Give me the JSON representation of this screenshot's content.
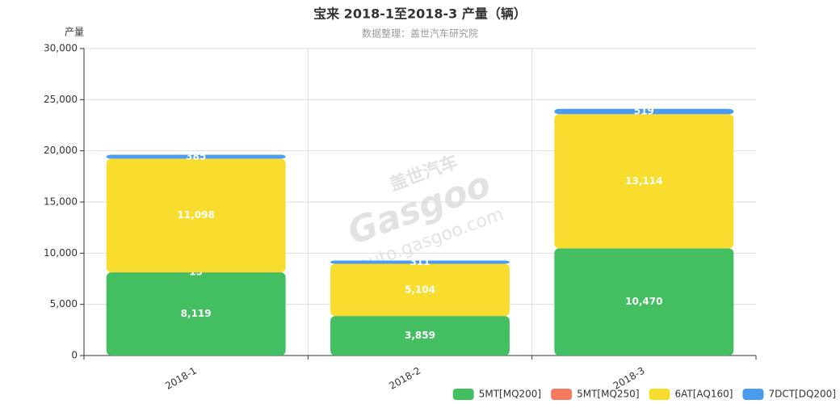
{
  "chart_data": {
    "type": "stacked_bar",
    "title": "宝来 2018-1至2018-3 产量（辆）",
    "subtitle": "数据整理：盖世汽车研究院",
    "y_label": "产量",
    "watermark": [
      "盖世汽车",
      "Gasgoo",
      "auto.gasgoo.com"
    ],
    "categories": [
      "2018-1",
      "2018-2",
      "2018-3"
    ],
    "series": [
      {
        "name": "5MT[MQ200]",
        "color": "#43be61",
        "values": [
          8119,
          3859,
          10470
        ],
        "value_labels": [
          "8,119",
          "3,859",
          "10,470"
        ]
      },
      {
        "name": "5MT[MQ250]",
        "color": "#f47a60",
        "values": [
          15,
          null,
          null
        ],
        "value_labels": [
          "15",
          null,
          null
        ]
      },
      {
        "name": "6AT[AQ160]",
        "color": "#f8dd2e",
        "values": [
          11098,
          5104,
          13114
        ],
        "value_labels": [
          "11,098",
          "5,104",
          "13,114"
        ]
      },
      {
        "name": "7DCT[DQ200]",
        "color": "#4b9cf0",
        "values": [
          385,
          311,
          519
        ],
        "value_labels": [
          "385",
          "311",
          "519"
        ]
      }
    ],
    "ylim": [
      0,
      30000
    ],
    "yticks": [
      0,
      {
        "value": 5000,
        "label": "5,000"
      },
      {
        "value": 10000,
        "label": "10,000"
      },
      {
        "value": 15000,
        "label": "15,000"
      },
      {
        "value": 20000,
        "label": "20,000"
      },
      {
        "value": 25000,
        "label": "25,000"
      },
      {
        "value": 30000,
        "label": "30,000"
      }
    ],
    "grid": true,
    "legend": "bottom-right"
  }
}
